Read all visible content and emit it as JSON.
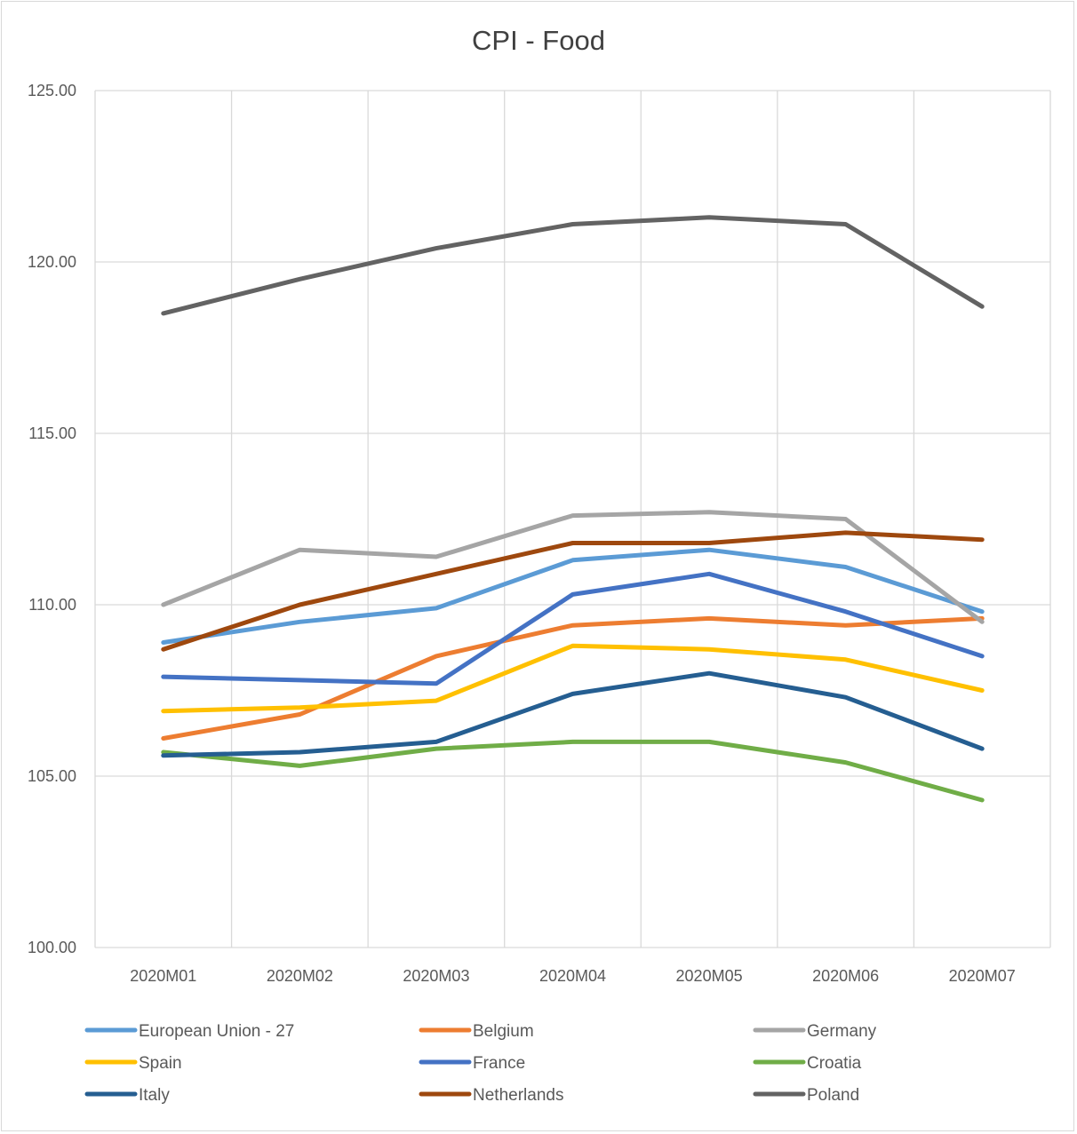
{
  "chart_data": {
    "type": "line",
    "title": "CPI - Food",
    "xlabel": "",
    "ylabel": "",
    "categories": [
      "2020M01",
      "2020M02",
      "2020M03",
      "2020M04",
      "2020M05",
      "2020M06",
      "2020M07"
    ],
    "ylim": [
      100,
      125
    ],
    "y_ticks": [
      "100.00",
      "105.00",
      "110.00",
      "115.00",
      "120.00",
      "125.00"
    ],
    "grid": true,
    "legend_position": "bottom",
    "series": [
      {
        "name": "European Union - 27",
        "color": "#5b9bd5",
        "values": [
          108.9,
          109.5,
          109.9,
          111.3,
          111.6,
          111.1,
          109.8
        ]
      },
      {
        "name": "Belgium",
        "color": "#ed7d31",
        "values": [
          106.1,
          106.8,
          108.5,
          109.4,
          109.6,
          109.4,
          109.6
        ]
      },
      {
        "name": "Germany",
        "color": "#a5a5a5",
        "values": [
          110.0,
          111.6,
          111.4,
          112.6,
          112.7,
          112.5,
          109.5
        ]
      },
      {
        "name": "Spain",
        "color": "#ffc000",
        "values": [
          106.9,
          107.0,
          107.2,
          108.8,
          108.7,
          108.4,
          107.5
        ]
      },
      {
        "name": "France",
        "color": "#4472c4",
        "values": [
          107.9,
          107.8,
          107.7,
          110.3,
          110.9,
          109.8,
          108.5
        ]
      },
      {
        "name": "Croatia",
        "color": "#70ad47",
        "values": [
          105.7,
          105.3,
          105.8,
          106.0,
          106.0,
          105.4,
          104.3
        ]
      },
      {
        "name": "Italy",
        "color": "#255e91",
        "values": [
          105.6,
          105.7,
          106.0,
          107.4,
          108.0,
          107.3,
          105.8
        ]
      },
      {
        "name": "Netherlands",
        "color": "#9e480e",
        "values": [
          108.7,
          110.0,
          110.9,
          111.8,
          111.8,
          112.1,
          111.9
        ]
      },
      {
        "name": "Poland",
        "color": "#636363",
        "values": [
          118.5,
          119.5,
          120.4,
          121.1,
          121.3,
          121.1,
          118.7
        ]
      }
    ]
  }
}
